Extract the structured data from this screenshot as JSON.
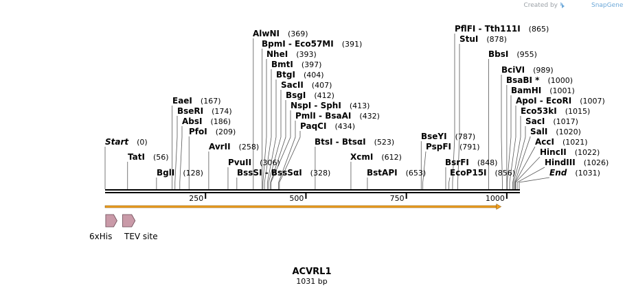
{
  "credit": {
    "prefix": "Created by",
    "brand": "SnapGene"
  },
  "sequence": {
    "name": "ACVRL1",
    "length_label": "1031 bp",
    "length": 1031
  },
  "colors": {
    "orf": "#f0a020",
    "orf_stroke": "#7a4a00",
    "feature": "#c99aa8",
    "feature_stroke": "#6a4a55",
    "backbone": "#000000"
  },
  "axis": {
    "ticks": [
      250,
      500,
      750,
      1000
    ]
  },
  "sites": [
    {
      "name": "Start",
      "pos": "(0)",
      "bp": 0,
      "italic": true
    },
    {
      "name": "TatI",
      "pos": "(56)",
      "bp": 56
    },
    {
      "name": "BglI",
      "pos": "(128)",
      "bp": 128
    },
    {
      "name": "EaeI",
      "pos": "(167)",
      "bp": 167
    },
    {
      "name": "BseRI",
      "pos": "(174)",
      "bp": 174
    },
    {
      "name": "AbsI",
      "pos": "(186)",
      "bp": 186
    },
    {
      "name": "PfoI",
      "pos": "(209)",
      "bp": 209
    },
    {
      "name": "AvrII",
      "pos": "(258)",
      "bp": 258
    },
    {
      "name": "PvuII",
      "pos": "(306)",
      "bp": 306
    },
    {
      "name": "BssSI - BssSαI",
      "pos": "(328)",
      "bp": 328
    },
    {
      "name": "AlwNI",
      "pos": "(369)",
      "bp": 369
    },
    {
      "name": "BpmI - Eco57MI",
      "pos": "(391)",
      "bp": 391
    },
    {
      "name": "NheI",
      "pos": "(393)",
      "bp": 393
    },
    {
      "name": "BmtI",
      "pos": "(397)",
      "bp": 397
    },
    {
      "name": "BtgI",
      "pos": "(404)",
      "bp": 404
    },
    {
      "name": "SacII",
      "pos": "(407)",
      "bp": 407
    },
    {
      "name": "BsgI",
      "pos": "(412)",
      "bp": 412
    },
    {
      "name": "NspI - SphI",
      "pos": "(413)",
      "bp": 413
    },
    {
      "name": "PmlI - BsaAI",
      "pos": "(432)",
      "bp": 432
    },
    {
      "name": "PaqCI",
      "pos": "(434)",
      "bp": 434
    },
    {
      "name": "BtsI - BtsαI",
      "pos": "(523)",
      "bp": 523
    },
    {
      "name": "XcmI",
      "pos": "(612)",
      "bp": 612
    },
    {
      "name": "BstAPI",
      "pos": "(653)",
      "bp": 653
    },
    {
      "name": "BseYI",
      "pos": "(787)",
      "bp": 787
    },
    {
      "name": "PspFI",
      "pos": "(791)",
      "bp": 791
    },
    {
      "name": "BsrFI",
      "pos": "(848)",
      "bp": 848
    },
    {
      "name": "EcoP15I",
      "pos": "(856)",
      "bp": 856
    },
    {
      "name": "PflFI - Tth111I",
      "pos": "(865)",
      "bp": 865
    },
    {
      "name": "StuI",
      "pos": "(878)",
      "bp": 878
    },
    {
      "name": "BbsI",
      "pos": "(955)",
      "bp": 955
    },
    {
      "name": "BciVI",
      "pos": "(989)",
      "bp": 989
    },
    {
      "name": "BsaBI *",
      "pos": "(1000)",
      "bp": 1000
    },
    {
      "name": "BamHI",
      "pos": "(1001)",
      "bp": 1001
    },
    {
      "name": "ApoI - EcoRI",
      "pos": "(1007)",
      "bp": 1007
    },
    {
      "name": "Eco53kI",
      "pos": "(1015)",
      "bp": 1015
    },
    {
      "name": "SacI",
      "pos": "(1017)",
      "bp": 1017
    },
    {
      "name": "SalI",
      "pos": "(1020)",
      "bp": 1020
    },
    {
      "name": "AccI",
      "pos": "(1021)",
      "bp": 1021
    },
    {
      "name": "HincII",
      "pos": "(1022)",
      "bp": 1022
    },
    {
      "name": "HindIII",
      "pos": "(1026)",
      "bp": 1026
    },
    {
      "name": "End",
      "pos": "(1031)",
      "bp": 1031,
      "italic": true
    }
  ],
  "orf": {
    "start_bp": 0,
    "end_bp": 986
  },
  "features": [
    {
      "name": "6xHis",
      "start_bp": 5,
      "end_bp": 23
    },
    {
      "name": "TEV site",
      "start_bp": 47,
      "end_bp": 68
    }
  ]
}
